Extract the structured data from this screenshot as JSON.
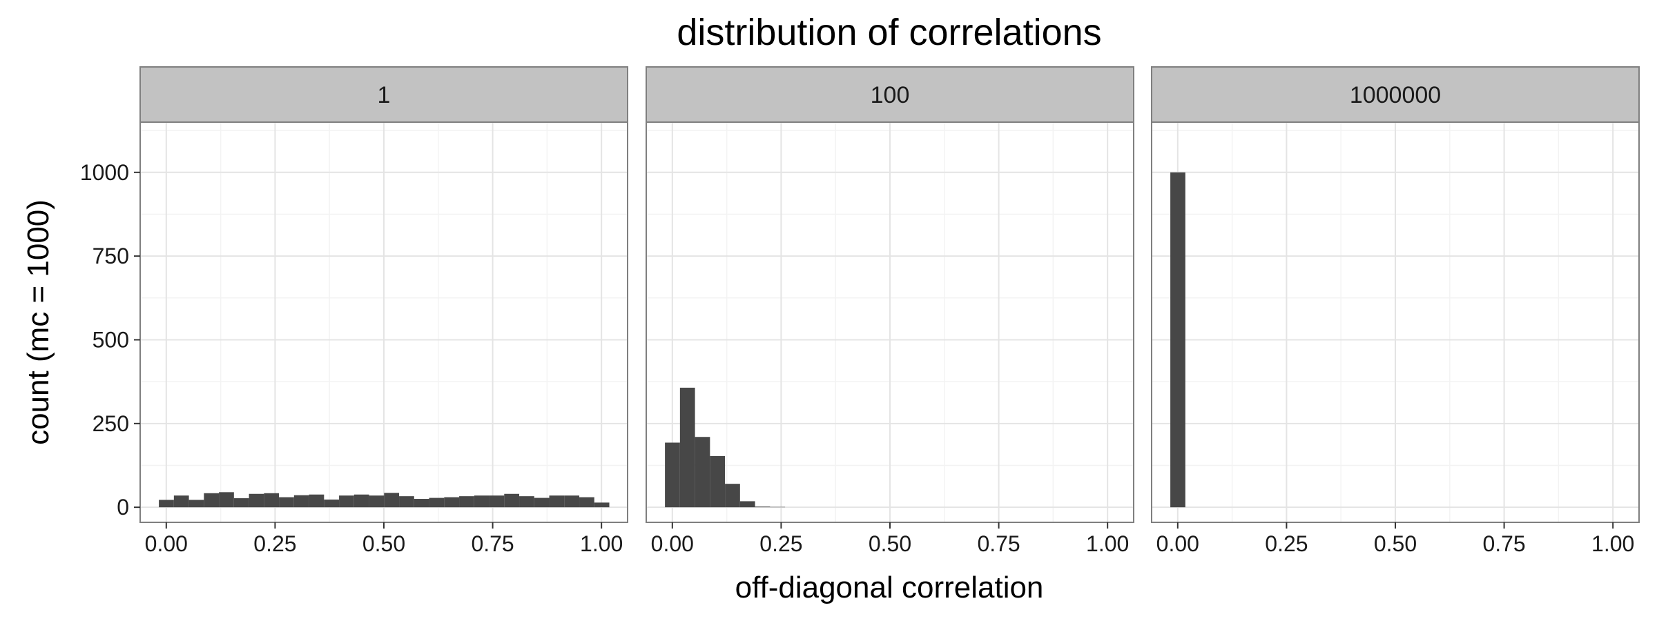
{
  "chart_data": {
    "type": "bar",
    "subtype": "faceted-histogram",
    "title": "distribution of correlations",
    "xlabel": "off-diagonal correlation",
    "ylabel": "count (mc = 1000)",
    "xlim": [
      -0.06,
      1.06
    ],
    "ylim": [
      -45,
      1150
    ],
    "x_ticks": [
      "0.00",
      "0.25",
      "0.50",
      "0.75",
      "1.00"
    ],
    "x_tick_values": [
      0,
      0.25,
      0.5,
      0.75,
      1.0
    ],
    "y_ticks": [
      "0",
      "250",
      "500",
      "750",
      "1000"
    ],
    "y_tick_values": [
      0,
      250,
      500,
      750,
      1000
    ],
    "grid": true,
    "bin_width": 0.0345,
    "bin_start": -0.017,
    "facets": [
      {
        "label": "1",
        "counts": [
          22,
          35,
          22,
          42,
          45,
          27,
          40,
          42,
          30,
          36,
          38,
          23,
          35,
          38,
          35,
          43,
          33,
          25,
          28,
          30,
          33,
          35,
          35,
          40,
          33,
          28,
          35,
          35,
          30,
          14
        ]
      },
      {
        "label": "100",
        "counts": [
          193,
          357,
          210,
          153,
          70,
          18,
          2,
          1
        ]
      },
      {
        "label": "1000000",
        "counts": [
          1000
        ]
      }
    ],
    "colors": {
      "bar": "#474747",
      "strip": "#c2c2c2",
      "border": "#7f7f7f"
    }
  }
}
